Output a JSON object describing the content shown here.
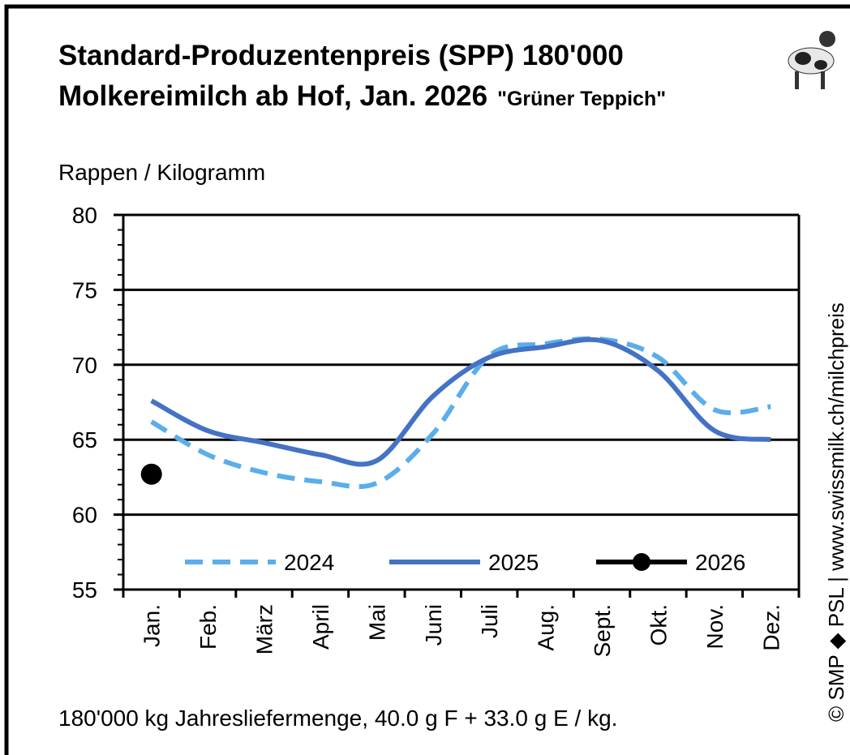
{
  "chart_data": {
    "type": "line",
    "title": [
      "Standard-Produzentenpreis (SPP) 180'000",
      "Molkereimilch ab Hof, Jan. 2026"
    ],
    "subtitle": "\"Grüner Teppich\"",
    "y_label": "Rappen / Kilogramm",
    "note": "180'000 kg Jahresliefermenge, 40.0 g F + 33.0 g E / kg.",
    "source": "© SMP ◆ PSL | www.swissmilk.ch/milchpreis",
    "categories": [
      "Jan.",
      "Feb.",
      "März",
      "April",
      "Mai",
      "Juni",
      "Juli",
      "Aug.",
      "Sept.",
      "Okt.",
      "Nov.",
      "Dez."
    ],
    "series": [
      {
        "name": "2024",
        "color": "#5aaeea",
        "dash": true,
        "values": [
          66.2,
          64.0,
          62.8,
          62.2,
          62.1,
          65.4,
          70.6,
          71.4,
          71.7,
          70.5,
          67.0,
          67.2
        ]
      },
      {
        "name": "2025",
        "color": "#4472c4",
        "dash": false,
        "values": [
          67.6,
          65.6,
          64.8,
          64.0,
          63.6,
          67.9,
          70.5,
          71.2,
          71.6,
          69.6,
          65.6,
          65.0
        ]
      },
      {
        "name": "2026",
        "color": "#000000",
        "marker": true,
        "values": [
          62.7,
          null,
          null,
          null,
          null,
          null,
          null,
          null,
          null,
          null,
          null,
          null
        ]
      }
    ],
    "ylim": [
      55,
      80
    ],
    "yticks": [
      55,
      60,
      65,
      70,
      75,
      80
    ],
    "grid": true
  }
}
